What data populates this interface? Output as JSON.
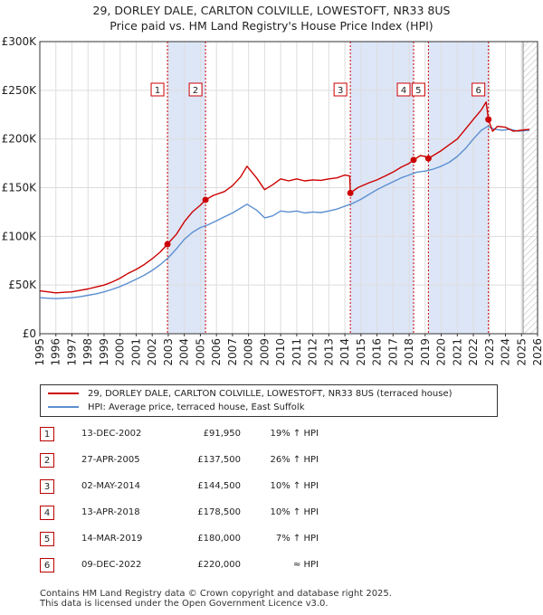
{
  "header": {
    "title_line1": "29, DORLEY DALE, CARLTON COLVILLE, LOWESTOFT, NR33 8US",
    "title_line2": "Price paid vs. HM Land Registry's House Price Index (HPI)"
  },
  "colors": {
    "property": "#cc0000",
    "hpi": "#5b8fd0",
    "shade": "#dde6f7",
    "vline": "#cc0000",
    "grid": "#dddddd"
  },
  "chart_data": {
    "type": "line",
    "title": "Price paid vs. HM Land Registry's House Price Index (HPI)",
    "xlabel": "",
    "ylabel": "",
    "xlim": [
      1995,
      2026
    ],
    "ylim": [
      0,
      300000
    ],
    "y_ticks": [
      0,
      50000,
      100000,
      150000,
      200000,
      250000,
      300000
    ],
    "y_tick_labels": [
      "£0",
      "£50K",
      "£100K",
      "£150K",
      "£200K",
      "£250K",
      "£300K"
    ],
    "x_ticks": [
      1995,
      1996,
      1997,
      1998,
      1999,
      2000,
      2001,
      2002,
      2003,
      2004,
      2005,
      2006,
      2007,
      2008,
      2009,
      2010,
      2011,
      2012,
      2013,
      2014,
      2015,
      2016,
      2017,
      2018,
      2019,
      2020,
      2021,
      2022,
      2023,
      2024,
      2025,
      2026
    ],
    "x_tick_labels": [
      "1995",
      "1996",
      "1997",
      "1998",
      "1999",
      "2000",
      "2001",
      "2002",
      "2003",
      "2004",
      "2005",
      "2006",
      "2007",
      "2008",
      "2009",
      "2010",
      "2011",
      "2012",
      "2013",
      "2014",
      "2015",
      "2016",
      "2017",
      "2018",
      "2019",
      "2020",
      "2021",
      "2022",
      "2023",
      "2024",
      "2025",
      "2026"
    ],
    "series": [
      {
        "name": "29, DORLEY DALE, CARLTON COLVILLE, LOWESTOFT, NR33 8US (terraced house)",
        "x": [
          1995,
          1995.5,
          1996,
          1996.5,
          1997,
          1997.5,
          1998,
          1998.5,
          1999,
          1999.5,
          2000,
          2000.5,
          2001,
          2001.5,
          2002,
          2002.5,
          2002.95,
          2003.5,
          2004,
          2004.5,
          2005,
          2005.32,
          2005.8,
          2006.5,
          2007,
          2007.5,
          2007.9,
          2008.5,
          2009,
          2009.5,
          2010,
          2010.5,
          2011,
          2011.5,
          2012,
          2012.5,
          2013,
          2013.5,
          2014,
          2014.3,
          2014.34,
          2014.8,
          2015.5,
          2016,
          2016.5,
          2017,
          2017.5,
          2018,
          2018.28,
          2018.7,
          2019,
          2019.2,
          2019.6,
          2020,
          2020.5,
          2021,
          2021.5,
          2022,
          2022.5,
          2022.8,
          2022.94,
          2023.2,
          2023.5,
          2024,
          2024.5,
          2025,
          2025.5
        ],
        "values": [
          44000,
          43000,
          42000,
          42500,
          43000,
          44500,
          46000,
          48000,
          50000,
          53000,
          57000,
          62000,
          66000,
          71000,
          77000,
          84000,
          91950,
          102000,
          115000,
          125000,
          132000,
          137500,
          142000,
          146000,
          152000,
          161000,
          172000,
          160000,
          148000,
          153000,
          159000,
          157000,
          159000,
          157000,
          158000,
          157500,
          159000,
          160000,
          163000,
          162000,
          144500,
          150000,
          155000,
          158000,
          162000,
          166000,
          171000,
          175000,
          178500,
          183000,
          182000,
          180000,
          184000,
          188000,
          194000,
          200000,
          210000,
          220000,
          230000,
          238000,
          220000,
          208000,
          213000,
          212000,
          208000,
          209000,
          210000
        ]
      },
      {
        "name": "HPI: Average price, terraced house, East Suffolk",
        "x": [
          1995,
          1995.5,
          1996,
          1996.5,
          1997,
          1997.5,
          1998,
          1998.5,
          1999,
          1999.5,
          2000,
          2000.5,
          2001,
          2001.5,
          2002,
          2002.5,
          2003,
          2003.5,
          2004,
          2004.5,
          2005,
          2005.5,
          2006,
          2006.5,
          2007,
          2007.5,
          2007.9,
          2008.5,
          2009,
          2009.5,
          2010,
          2010.5,
          2011,
          2011.5,
          2012,
          2012.5,
          2013,
          2013.5,
          2014,
          2014.5,
          2015,
          2015.5,
          2016,
          2016.5,
          2017,
          2017.5,
          2018,
          2018.5,
          2019,
          2019.5,
          2020,
          2020.5,
          2021,
          2021.5,
          2022,
          2022.5,
          2022.9,
          2023.3,
          2023.8,
          2024.3,
          2024.8,
          2025.5
        ],
        "values": [
          37000,
          36500,
          36000,
          36500,
          37000,
          38000,
          39500,
          41000,
          43000,
          45500,
          48500,
          52000,
          56000,
          60000,
          65000,
          71000,
          78000,
          87000,
          97000,
          104000,
          109000,
          112000,
          116000,
          120000,
          124000,
          129000,
          133000,
          127000,
          119000,
          121000,
          126000,
          125000,
          126000,
          124000,
          125000,
          124500,
          126000,
          128000,
          131000,
          134000,
          138000,
          143000,
          148000,
          152000,
          156000,
          160000,
          163000,
          166000,
          167000,
          169000,
          172000,
          176000,
          182000,
          190000,
          200000,
          209000,
          213000,
          210000,
          209000,
          210000,
          208000,
          209000
        ]
      }
    ],
    "sales": [
      {
        "n": "1",
        "x": 2002.95,
        "value": 91950
      },
      {
        "n": "2",
        "x": 2005.32,
        "value": 137500
      },
      {
        "n": "3",
        "x": 2014.34,
        "value": 144500
      },
      {
        "n": "4",
        "x": 2018.28,
        "value": 178500
      },
      {
        "n": "5",
        "x": 2019.2,
        "value": 180000
      },
      {
        "n": "6",
        "x": 2022.94,
        "value": 220000
      }
    ],
    "shaded_ranges": [
      [
        2002.95,
        2005.32
      ],
      [
        2014.34,
        2018.28
      ],
      [
        2019.2,
        2022.94
      ]
    ],
    "forecast_start": 2025.1
  },
  "legend": {
    "property_label": "29, DORLEY DALE, CARLTON COLVILLE, LOWESTOFT, NR33 8US (terraced house)",
    "hpi_label": "HPI: Average price, terraced house, East Suffolk"
  },
  "sales_table": [
    {
      "n": "1",
      "date": "13-DEC-2002",
      "price": "£91,950",
      "hpi": "19% ↑ HPI"
    },
    {
      "n": "2",
      "date": "27-APR-2005",
      "price": "£137,500",
      "hpi": "26% ↑ HPI"
    },
    {
      "n": "3",
      "date": "02-MAY-2014",
      "price": "£144,500",
      "hpi": "10% ↑ HPI"
    },
    {
      "n": "4",
      "date": "13-APR-2018",
      "price": "£178,500",
      "hpi": "10% ↑ HPI"
    },
    {
      "n": "5",
      "date": "14-MAR-2019",
      "price": "£180,000",
      "hpi": "7% ↑ HPI"
    },
    {
      "n": "6",
      "date": "09-DEC-2022",
      "price": "£220,000",
      "hpi": "≈ HPI"
    }
  ],
  "footer": {
    "line1": "Contains HM Land Registry data © Crown copyright and database right 2025.",
    "line2": "This data is licensed under the Open Government Licence v3.0."
  }
}
